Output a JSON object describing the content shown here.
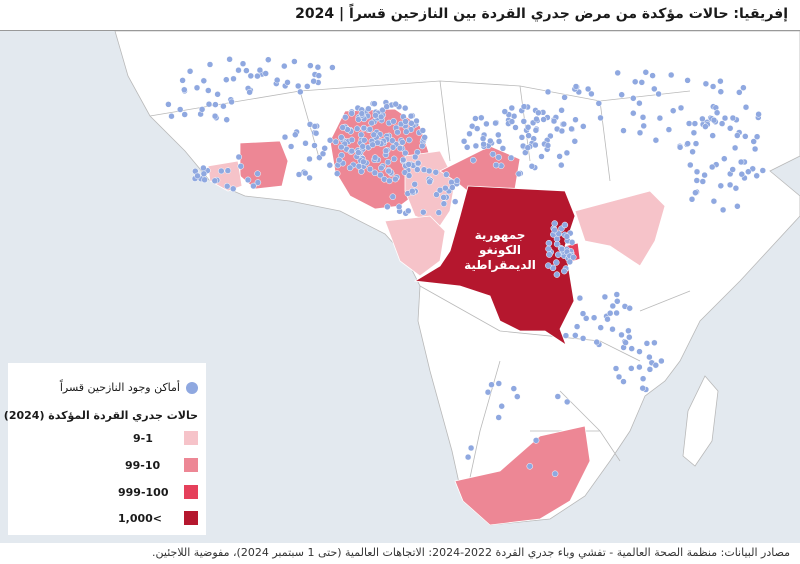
{
  "header": {
    "title": "إفريقيا: حالات مؤكدة من مرض جدري القردة بين النازحين قسراً | 2024"
  },
  "map": {
    "label_lines": [
      "جمهورية",
      "الكونغو",
      "الديمقراطية"
    ]
  },
  "legend": {
    "points_label": "أماكن وجود النازحين قسراً",
    "scale_title": "حالات جدري القردة المؤكدة (2024)",
    "items": [
      "9-1",
      "99-10",
      "999-100",
      "1,000<"
    ]
  },
  "footer": {
    "source": "مصادر البيانات: منظمة الصحة العالمية - تفشي وباء جدري القردة 2022-2024: الاتجاهات العالمية (حتى 1 سبتمبر 2024)، مفوضية اللاجئين."
  }
}
